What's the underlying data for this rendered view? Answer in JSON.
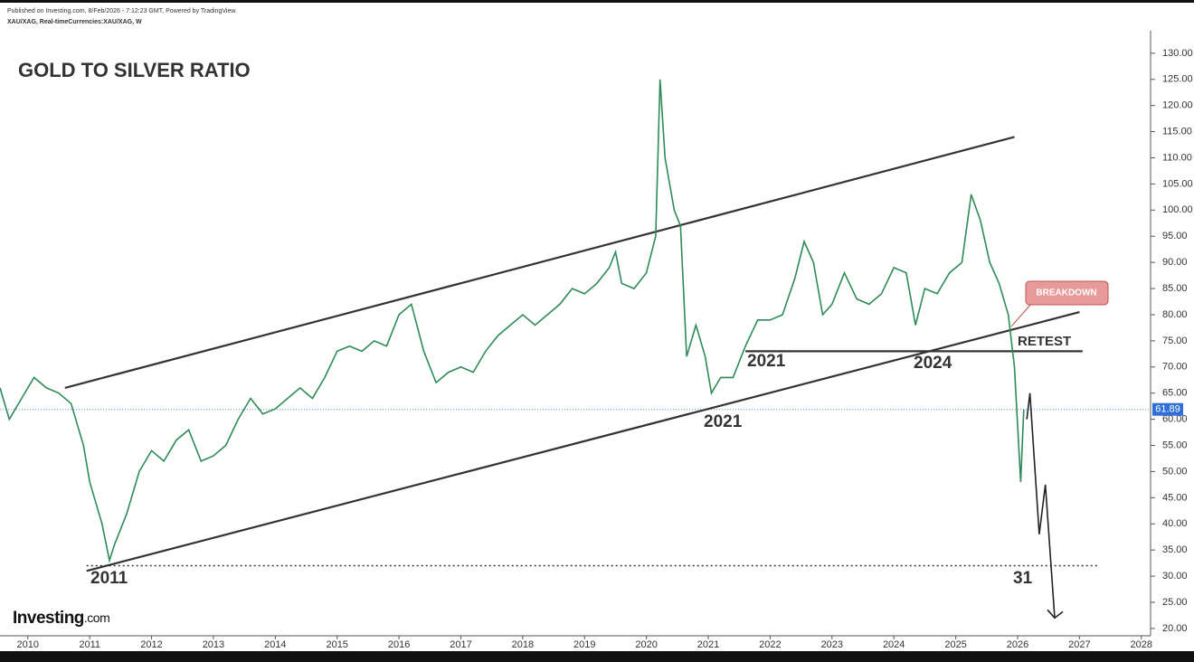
{
  "chart_data": {
    "type": "line",
    "header": "Published on Investing.com, 8/Feb/2026 - 7:12:23 GMT, Powered by TradingView.",
    "symbol": "XAU/XAG, Real-timeCurrencies:XAU/XAG, W",
    "title": "GOLD TO SILVER RATIO",
    "logo": "Investing",
    "logo_suffix": ".com",
    "xlim": [
      2009.55,
      2028.15
    ],
    "ylim": [
      18.6,
      134.3
    ],
    "xticks": [
      2010,
      2011,
      2012,
      2013,
      2014,
      2015,
      2016,
      2017,
      2018,
      2019,
      2020,
      2021,
      2022,
      2023,
      2024,
      2025,
      2026,
      2027,
      2028
    ],
    "yticks": [
      {
        "value": 20,
        "label": "20.00"
      },
      {
        "value": 25,
        "label": "25.00"
      },
      {
        "value": 30,
        "label": "30.00"
      },
      {
        "value": 35,
        "label": "35.00"
      },
      {
        "value": 40,
        "label": "40.00"
      },
      {
        "value": 45,
        "label": "45.00"
      },
      {
        "value": 50,
        "label": "50.00"
      },
      {
        "value": 55,
        "label": "55.00"
      },
      {
        "value": 60,
        "label": "60.00"
      },
      {
        "value": 65,
        "label": "65.00"
      },
      {
        "value": 70,
        "label": "70.00"
      },
      {
        "value": 75,
        "label": "75.00"
      },
      {
        "value": 80,
        "label": "80.00"
      },
      {
        "value": 85,
        "label": "85.00"
      },
      {
        "value": 90,
        "label": "90.00"
      },
      {
        "value": 95,
        "label": "95.00"
      },
      {
        "value": 100,
        "label": "100.00"
      },
      {
        "value": 105,
        "label": "105.00"
      },
      {
        "value": 110,
        "label": "110.00"
      },
      {
        "value": 115,
        "label": "115.00"
      },
      {
        "value": 120,
        "label": "120.00"
      },
      {
        "value": 125,
        "label": "125.00"
      },
      {
        "value": 130,
        "label": "130.00"
      }
    ],
    "x": [
      2009.55,
      2009.7,
      2009.9,
      2010.1,
      2010.3,
      2010.5,
      2010.7,
      2010.9,
      2011.0,
      2011.2,
      2011.32,
      2011.4,
      2011.6,
      2011.8,
      2012.0,
      2012.2,
      2012.4,
      2012.6,
      2012.8,
      2013.0,
      2013.2,
      2013.4,
      2013.6,
      2013.8,
      2014.0,
      2014.2,
      2014.4,
      2014.6,
      2014.8,
      2015.0,
      2015.2,
      2015.4,
      2015.6,
      2015.8,
      2016.0,
      2016.2,
      2016.4,
      2016.6,
      2016.8,
      2017.0,
      2017.2,
      2017.4,
      2017.6,
      2017.8,
      2018.0,
      2018.2,
      2018.4,
      2018.6,
      2018.8,
      2019.0,
      2019.2,
      2019.4,
      2019.5,
      2019.6,
      2019.8,
      2020.0,
      2020.15,
      2020.22,
      2020.3,
      2020.45,
      2020.55,
      2020.65,
      2020.8,
      2020.95,
      2021.05,
      2021.2,
      2021.4,
      2021.6,
      2021.8,
      2022.0,
      2022.2,
      2022.4,
      2022.55,
      2022.7,
      2022.85,
      2023.0,
      2023.2,
      2023.4,
      2023.6,
      2023.8,
      2024.0,
      2024.2,
      2024.35,
      2024.5,
      2024.7,
      2024.9,
      2025.1,
      2025.25,
      2025.4,
      2025.55,
      2025.7,
      2025.85,
      2025.95,
      2026.05,
      2026.1
    ],
    "series": [
      {
        "color": "#2e8b57",
        "values": [
          66,
          60,
          64,
          68,
          66,
          65,
          63,
          55,
          48,
          40,
          33,
          36,
          42,
          50,
          54,
          52,
          56,
          58,
          52,
          53,
          55,
          60,
          64,
          61,
          62,
          64,
          66,
          64,
          68,
          73,
          74,
          73,
          75,
          74,
          80,
          82,
          73,
          67,
          69,
          70,
          69,
          73,
          76,
          78,
          80,
          78,
          80,
          82,
          85,
          84,
          86,
          89,
          92,
          86,
          85,
          88,
          95,
          125,
          110,
          100,
          97,
          72,
          78,
          72,
          65,
          68,
          68,
          74,
          79,
          79,
          80,
          87,
          94,
          90,
          80,
          82,
          88,
          83,
          82,
          84,
          89,
          88,
          78,
          85,
          84,
          88,
          90,
          103,
          98,
          90,
          86,
          80,
          70,
          48,
          61.89
        ]
      }
    ],
    "trendlines": [
      {
        "x": [
          2010.6,
          2025.95
        ],
        "y": [
          66,
          114
        ]
      },
      {
        "x": [
          2010.95,
          2027.0
        ],
        "y": [
          31,
          80.5
        ]
      },
      {
        "x": [
          2021.6,
          2027.05
        ],
        "y": [
          73,
          73
        ]
      }
    ],
    "support": {
      "x": [
        2010.95,
        2027.3
      ],
      "y": [
        32,
        32
      ]
    },
    "projection": {
      "x": [
        2026.15,
        2026.2,
        2026.35,
        2026.45,
        2026.6
      ],
      "y": [
        60,
        65,
        38,
        47.5,
        22
      ]
    },
    "annotations": [
      "2011",
      "2021",
      "2021",
      "2024",
      "RETEST",
      "BREAKDOWN",
      "31"
    ]
  }
}
